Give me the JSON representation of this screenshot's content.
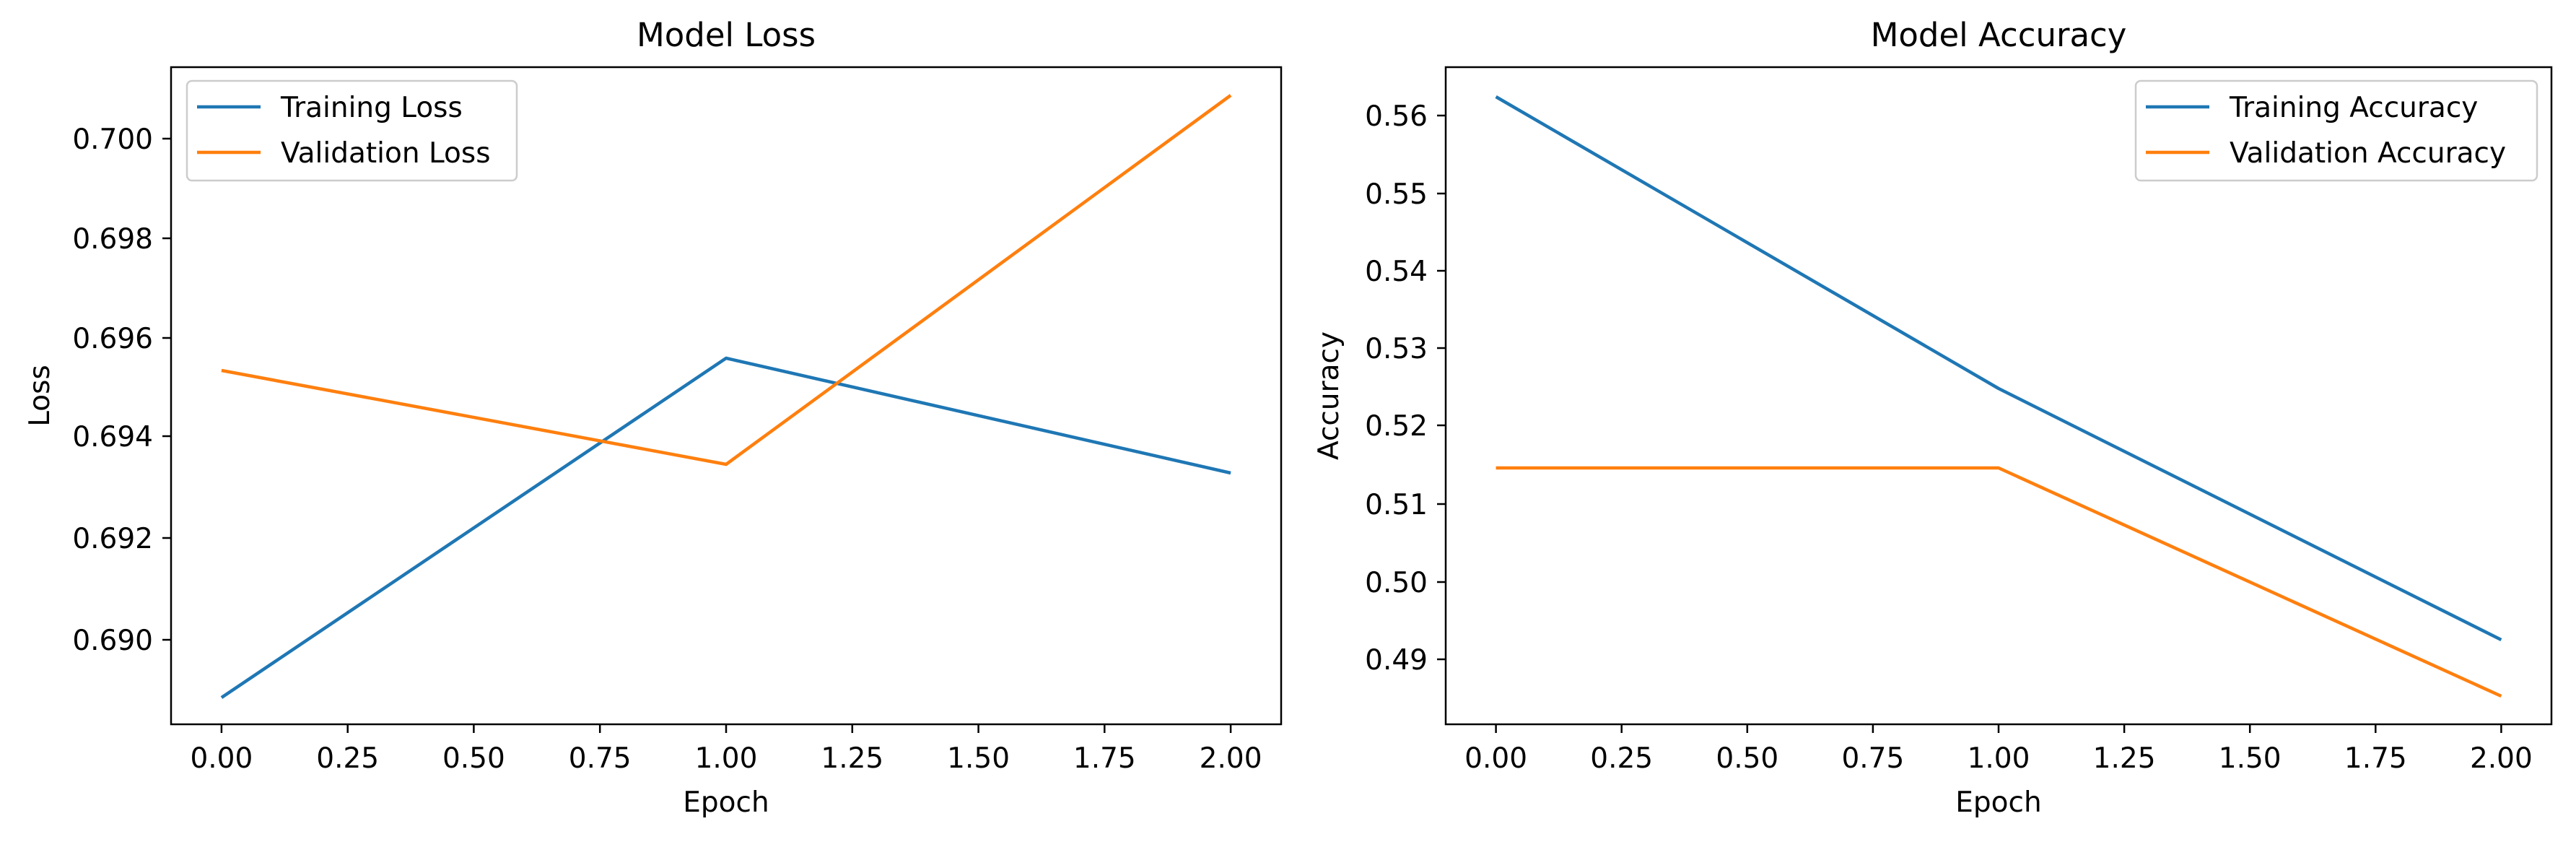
{
  "chart_data": [
    {
      "type": "line",
      "title": "Model Loss",
      "xlabel": "Epoch",
      "ylabel": "Loss",
      "x": [
        0,
        1,
        2
      ],
      "xlim": [
        -0.1,
        2.1
      ],
      "ylim": [
        0.6881,
        0.7016
      ],
      "xticks": [
        "0.00",
        "0.25",
        "0.50",
        "0.75",
        "1.00",
        "1.25",
        "1.50",
        "1.75",
        "2.00"
      ],
      "yticks": [
        "0.690",
        "0.692",
        "0.694",
        "0.696",
        "0.698",
        "0.700"
      ],
      "grid": false,
      "legend_position": "top-left",
      "series": [
        {
          "name": "Training Loss",
          "color": "#1f77b4",
          "values": [
            0.6888,
            0.6956,
            0.6933
          ]
        },
        {
          "name": "Validation Loss",
          "color": "#ff7f0e",
          "values": [
            0.6953,
            0.6934,
            0.7008
          ]
        }
      ]
    },
    {
      "type": "line",
      "title": "Model Accuracy",
      "xlabel": "Epoch",
      "ylabel": "Accuracy",
      "x": [
        0,
        1,
        2
      ],
      "xlim": [
        -0.1,
        2.1
      ],
      "ylim": [
        0.4817,
        0.5659
      ],
      "xticks": [
        "0.00",
        "0.25",
        "0.50",
        "0.75",
        "1.00",
        "1.25",
        "1.50",
        "1.75",
        "2.00"
      ],
      "yticks": [
        "0.49",
        "0.50",
        "0.51",
        "0.52",
        "0.53",
        "0.54",
        "0.55",
        "0.56"
      ],
      "grid": false,
      "legend_position": "top-right",
      "series": [
        {
          "name": "Training Accuracy",
          "color": "#1f77b4",
          "values": [
            0.5625,
            0.525,
            0.4925
          ]
        },
        {
          "name": "Validation Accuracy",
          "color": "#ff7f0e",
          "values": [
            0.5147,
            0.5147,
            0.4853
          ]
        }
      ]
    }
  ]
}
